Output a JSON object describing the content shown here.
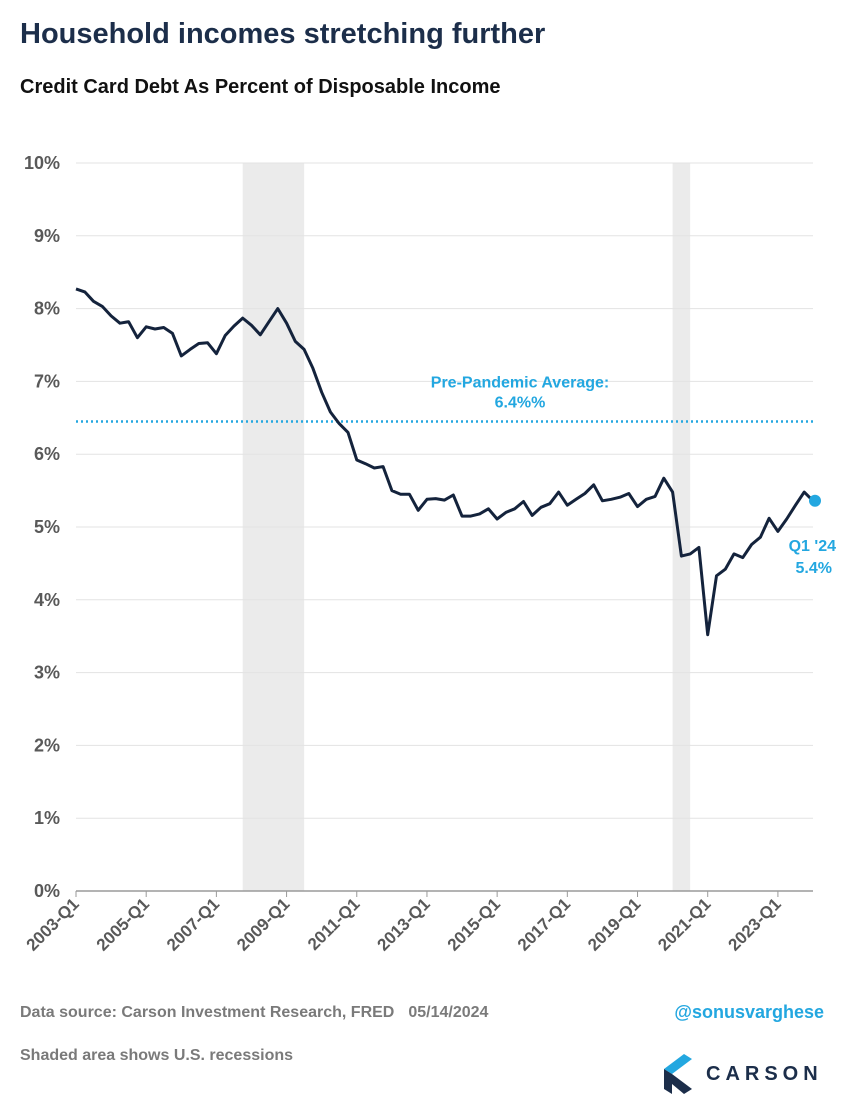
{
  "header": {
    "title": "Household incomes stretching further",
    "subtitle": "Credit Card Debt As Percent of Disposable Income"
  },
  "footer": {
    "source": "Data source: Carson Investment Research, FRED",
    "date": "05/14/2024",
    "recession_note": "Shaded area shows U.S. recessions",
    "handle": "@sonusvarghese",
    "brand": "CARSON",
    "logo_icon": "carson-logo-icon"
  },
  "colors": {
    "series": "#14233c",
    "accent": "#23a7e0",
    "recession": "#ebebeb",
    "grid": "#e3e3e3",
    "title": "#1c2e4a"
  },
  "chart_data": {
    "type": "line",
    "title": "Credit Card Debt As Percent of Disposable Income",
    "xlabel": "",
    "ylabel": "",
    "ylim": [
      0,
      10
    ],
    "y_ticks": [
      "0%",
      "1%",
      "2%",
      "3%",
      "4%",
      "5%",
      "6%",
      "7%",
      "8%",
      "9%",
      "10%"
    ],
    "x_ticks": [
      "2003-Q1",
      "2005-Q1",
      "2007-Q1",
      "2009-Q1",
      "2011-Q1",
      "2013-Q1",
      "2015-Q1",
      "2017-Q1",
      "2019-Q1",
      "2021-Q1",
      "2023-Q1"
    ],
    "grid": true,
    "recessions": [
      {
        "start": "2007-Q4",
        "end": "2009-Q2"
      },
      {
        "start": "2020-Q1",
        "end": "2020-Q2"
      }
    ],
    "reference_line": {
      "label": "Pre-Pandemic Average:",
      "value_label": "6.4%%",
      "value": 6.45
    },
    "series": [
      {
        "values": [
          [
            "2003-Q1",
            8.27
          ],
          [
            "2003-Q2",
            8.23
          ],
          [
            "2003-Q3",
            8.1
          ],
          [
            "2003-Q4",
            8.03
          ],
          [
            "2004-Q1",
            7.9
          ],
          [
            "2004-Q2",
            7.8
          ],
          [
            "2004-Q3",
            7.82
          ],
          [
            "2004-Q4",
            7.6
          ],
          [
            "2005-Q1",
            7.75
          ],
          [
            "2005-Q2",
            7.72
          ],
          [
            "2005-Q3",
            7.74
          ],
          [
            "2005-Q4",
            7.66
          ],
          [
            "2006-Q1",
            7.35
          ],
          [
            "2006-Q2",
            7.44
          ],
          [
            "2006-Q3",
            7.52
          ],
          [
            "2006-Q4",
            7.53
          ],
          [
            "2007-Q1",
            7.38
          ],
          [
            "2007-Q2",
            7.63
          ],
          [
            "2007-Q3",
            7.76
          ],
          [
            "2007-Q4",
            7.87
          ],
          [
            "2008-Q1",
            7.77
          ],
          [
            "2008-Q2",
            7.64
          ],
          [
            "2008-Q3",
            7.82
          ],
          [
            "2008-Q4",
            8.0
          ],
          [
            "2009-Q1",
            7.8
          ],
          [
            "2009-Q2",
            7.55
          ],
          [
            "2009-Q3",
            7.44
          ],
          [
            "2009-Q4",
            7.18
          ],
          [
            "2010-Q1",
            6.85
          ],
          [
            "2010-Q2",
            6.58
          ],
          [
            "2010-Q3",
            6.42
          ],
          [
            "2010-Q4",
            6.3
          ],
          [
            "2011-Q1",
            5.92
          ],
          [
            "2011-Q2",
            5.87
          ],
          [
            "2011-Q3",
            5.81
          ],
          [
            "2011-Q4",
            5.83
          ],
          [
            "2012-Q1",
            5.5
          ],
          [
            "2012-Q2",
            5.45
          ],
          [
            "2012-Q3",
            5.45
          ],
          [
            "2012-Q4",
            5.23
          ],
          [
            "2013-Q1",
            5.38
          ],
          [
            "2013-Q2",
            5.39
          ],
          [
            "2013-Q3",
            5.37
          ],
          [
            "2013-Q4",
            5.44
          ],
          [
            "2014-Q1",
            5.15
          ],
          [
            "2014-Q2",
            5.15
          ],
          [
            "2014-Q3",
            5.18
          ],
          [
            "2014-Q4",
            5.25
          ],
          [
            "2015-Q1",
            5.11
          ],
          [
            "2015-Q2",
            5.2
          ],
          [
            "2015-Q3",
            5.25
          ],
          [
            "2015-Q4",
            5.35
          ],
          [
            "2016-Q1",
            5.16
          ],
          [
            "2016-Q2",
            5.27
          ],
          [
            "2016-Q3",
            5.32
          ],
          [
            "2016-Q4",
            5.48
          ],
          [
            "2017-Q1",
            5.3
          ],
          [
            "2017-Q2",
            5.38
          ],
          [
            "2017-Q3",
            5.46
          ],
          [
            "2017-Q4",
            5.58
          ],
          [
            "2018-Q1",
            5.36
          ],
          [
            "2018-Q2",
            5.38
          ],
          [
            "2018-Q3",
            5.41
          ],
          [
            "2018-Q4",
            5.46
          ],
          [
            "2019-Q1",
            5.28
          ],
          [
            "2019-Q2",
            5.38
          ],
          [
            "2019-Q3",
            5.42
          ],
          [
            "2019-Q4",
            5.67
          ],
          [
            "2020-Q1",
            5.48
          ],
          [
            "2020-Q2",
            4.6
          ],
          [
            "2020-Q3",
            4.63
          ],
          [
            "2020-Q4",
            4.72
          ],
          [
            "2021-Q1",
            3.52
          ],
          [
            "2021-Q2",
            4.33
          ],
          [
            "2021-Q3",
            4.42
          ],
          [
            "2021-Q4",
            4.63
          ],
          [
            "2022-Q1",
            4.58
          ],
          [
            "2022-Q2",
            4.76
          ],
          [
            "2022-Q3",
            4.86
          ],
          [
            "2022-Q4",
            5.12
          ],
          [
            "2023-Q1",
            4.94
          ],
          [
            "2023-Q2",
            5.11
          ],
          [
            "2023-Q3",
            5.3
          ],
          [
            "2023-Q4",
            5.48
          ],
          [
            "2024-Q1",
            5.36
          ]
        ]
      }
    ],
    "last_point": {
      "x": "2024-Q1",
      "value": 5.36,
      "label": "Q1 '24",
      "value_label": "5.4%"
    }
  }
}
